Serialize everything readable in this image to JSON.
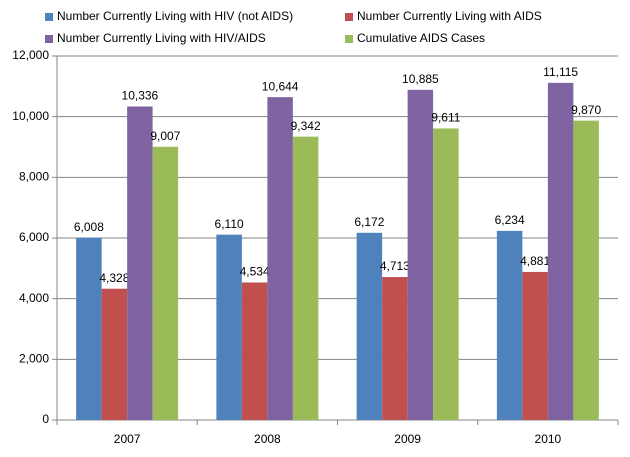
{
  "chart_data": {
    "type": "bar",
    "categories": [
      "2007",
      "2008",
      "2009",
      "2010"
    ],
    "series": [
      {
        "name": "Number Currently Living with HIV (not AIDS)",
        "color": "#4f81bd",
        "values": [
          6008,
          6110,
          6172,
          6234
        ],
        "value_labels": [
          "6,008",
          "6,110",
          "6,172",
          "6,234"
        ]
      },
      {
        "name": "Number Currently Living with AIDS",
        "color": "#c0504d",
        "values": [
          4328,
          4534,
          4713,
          4881
        ],
        "value_labels": [
          "4,328",
          "4,534",
          "4,713",
          "4,881"
        ]
      },
      {
        "name": "Number Currently Living with HIV/AIDS",
        "color": "#8064a2",
        "values": [
          10336,
          10644,
          10885,
          11115
        ],
        "value_labels": [
          "10,336",
          "10,644",
          "10,885",
          "11,115"
        ]
      },
      {
        "name": "Cumulative AIDS Cases",
        "color": "#9bbb59",
        "values": [
          9007,
          9342,
          9611,
          9870
        ],
        "value_labels": [
          "9,007",
          "9,342",
          "9,611",
          "9,870"
        ]
      }
    ],
    "ylim": [
      0,
      12000
    ],
    "yticks": [
      0,
      {
        "value": 2000,
        "label": "2,000"
      },
      {
        "value": 4000,
        "label": "4,000"
      },
      {
        "value": 6000,
        "label": "6,000"
      },
      {
        "value": 8000,
        "label": "8,000"
      },
      {
        "value": 10000,
        "label": "10,000"
      },
      {
        "value": 12000,
        "label": "12,000"
      }
    ],
    "grid": true
  }
}
